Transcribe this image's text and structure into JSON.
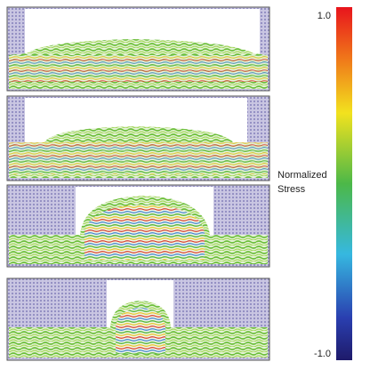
{
  "colorbar": {
    "max_label": "1.0",
    "min_label": "-1.0"
  },
  "label": {
    "line1": "Normalized",
    "line2": "Stress"
  }
}
